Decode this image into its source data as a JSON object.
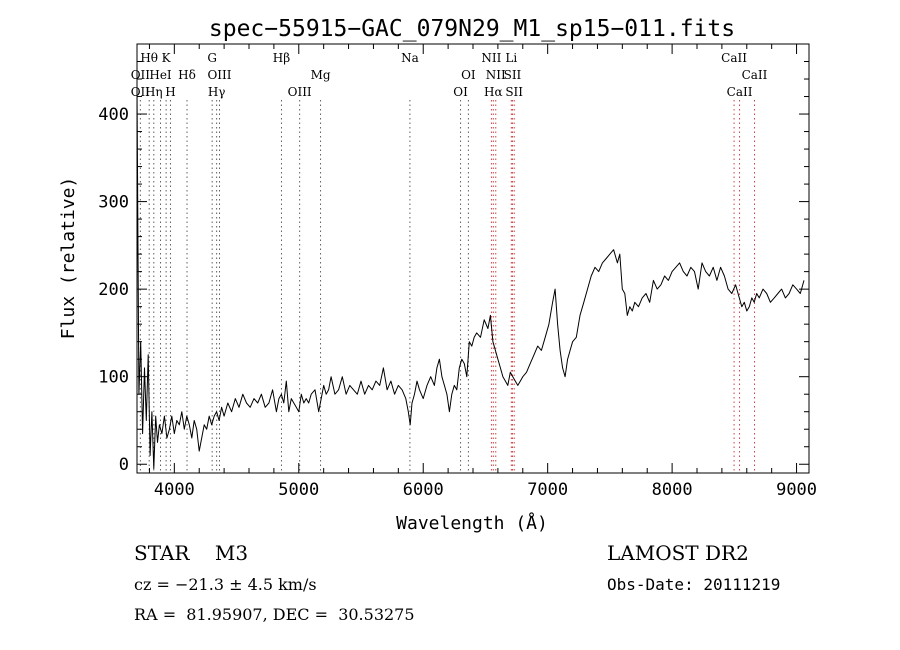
{
  "chart_data": {
    "type": "line",
    "title": "spec−55915−GAC_079N29_M1_sp15−011.fits",
    "xlabel": "Wavelength (Å)",
    "ylabel": "Flux (relative)",
    "xlim": [
      3700,
      9100
    ],
    "ylim": [
      -10,
      480
    ],
    "xticks": [
      4000,
      5000,
      6000,
      7000,
      8000,
      9000
    ],
    "yticks": [
      0,
      100,
      200,
      300,
      400
    ],
    "grid": false,
    "series": [
      {
        "x": [
          3700,
          3715,
          3730,
          3745,
          3760,
          3775,
          3790,
          3805,
          3820,
          3835,
          3850,
          3865,
          3880,
          3900,
          3920,
          3940,
          3960,
          3980,
          4000,
          4020,
          4040,
          4060,
          4080,
          4100,
          4120,
          4140,
          4160,
          4180,
          4200,
          4220,
          4240,
          4260,
          4280,
          4300,
          4320,
          4340,
          4360,
          4380,
          4400,
          4430,
          4460,
          4490,
          4520,
          4550,
          4580,
          4610,
          4640,
          4670,
          4700,
          4730,
          4760,
          4790,
          4820,
          4840,
          4860,
          4880,
          4900,
          4920,
          4940,
          4960,
          4980,
          5000,
          5020,
          5040,
          5060,
          5080,
          5100,
          5130,
          5160,
          5180,
          5200,
          5220,
          5240,
          5260,
          5290,
          5320,
          5350,
          5380,
          5410,
          5440,
          5470,
          5500,
          5530,
          5560,
          5590,
          5620,
          5650,
          5680,
          5710,
          5740,
          5770,
          5800,
          5830,
          5860,
          5880,
          5895,
          5910,
          5930,
          5950,
          5970,
          6000,
          6030,
          6060,
          6090,
          6110,
          6130,
          6150,
          6170,
          6190,
          6210,
          6230,
          6250,
          6270,
          6290,
          6310,
          6330,
          6350,
          6370,
          6390,
          6410,
          6430,
          6460,
          6490,
          6520,
          6540,
          6560,
          6580,
          6600,
          6620,
          6640,
          6660,
          6680,
          6700,
          6720,
          6740,
          6760,
          6780,
          6800,
          6830,
          6860,
          6890,
          6920,
          6950,
          6980,
          7010,
          7040,
          7060,
          7080,
          7100,
          7120,
          7140,
          7160,
          7180,
          7200,
          7230,
          7260,
          7290,
          7320,
          7350,
          7380,
          7410,
          7440,
          7470,
          7500,
          7530,
          7560,
          7580,
          7600,
          7620,
          7640,
          7660,
          7680,
          7700,
          7730,
          7760,
          7790,
          7820,
          7850,
          7880,
          7910,
          7940,
          7970,
          8000,
          8030,
          8060,
          8090,
          8120,
          8150,
          8180,
          8210,
          8240,
          8270,
          8300,
          8330,
          8360,
          8390,
          8420,
          8450,
          8480,
          8510,
          8540,
          8560,
          8580,
          8600,
          8620,
          8640,
          8660,
          8680,
          8700,
          8730,
          8760,
          8790,
          8820,
          8850,
          8880,
          8910,
          8940,
          8970,
          9000,
          9030,
          9060
        ],
        "y": [
          430,
          80,
          140,
          35,
          110,
          50,
          125,
          10,
          60,
          -5,
          55,
          25,
          45,
          35,
          55,
          30,
          40,
          55,
          35,
          50,
          45,
          60,
          40,
          55,
          45,
          30,
          50,
          40,
          15,
          30,
          45,
          40,
          55,
          45,
          55,
          60,
          50,
          65,
          55,
          70,
          60,
          75,
          65,
          80,
          70,
          65,
          75,
          70,
          80,
          65,
          70,
          85,
          60,
          75,
          80,
          70,
          95,
          60,
          75,
          70,
          65,
          60,
          80,
          70,
          75,
          70,
          80,
          85,
          60,
          75,
          90,
          80,
          85,
          100,
          80,
          85,
          100,
          80,
          90,
          85,
          80,
          95,
          80,
          90,
          85,
          95,
          90,
          110,
          85,
          95,
          80,
          90,
          85,
          75,
          60,
          45,
          70,
          80,
          95,
          85,
          75,
          90,
          100,
          90,
          110,
          120,
          100,
          90,
          80,
          60,
          80,
          90,
          85,
          110,
          120,
          115,
          100,
          140,
          135,
          145,
          150,
          145,
          165,
          155,
          170,
          140,
          130,
          120,
          110,
          100,
          95,
          90,
          105,
          100,
          95,
          90,
          95,
          100,
          105,
          115,
          125,
          135,
          130,
          145,
          160,
          185,
          200,
          160,
          130,
          110,
          100,
          120,
          130,
          140,
          145,
          170,
          185,
          200,
          215,
          225,
          220,
          230,
          235,
          240,
          245,
          230,
          240,
          200,
          195,
          170,
          180,
          175,
          185,
          180,
          190,
          195,
          185,
          210,
          200,
          205,
          215,
          210,
          220,
          225,
          230,
          220,
          215,
          225,
          220,
          200,
          230,
          220,
          215,
          225,
          210,
          225,
          215,
          200,
          195,
          205,
          190,
          180,
          185,
          175,
          180,
          190,
          185,
          195,
          190,
          200,
          195,
          185,
          190,
          195,
          200,
          190,
          195,
          205,
          200,
          195,
          210
        ]
      }
    ],
    "spectral_lines": [
      {
        "label": "Hθ",
        "x": 3798,
        "row": 1
      },
      {
        "label": "K",
        "x": 3934,
        "row": 1
      },
      {
        "label": "G",
        "x": 4304,
        "row": 1
      },
      {
        "label": "Hβ",
        "x": 4861,
        "row": 1
      },
      {
        "label": "Na",
        "x": 5893,
        "row": 1
      },
      {
        "label": "NII",
        "x": 6548,
        "row": 1
      },
      {
        "label": "Li",
        "x": 6708,
        "row": 1
      },
      {
        "label": "CaII",
        "x": 8498,
        "row": 1
      },
      {
        "label": "OII",
        "x": 3727,
        "row": 2
      },
      {
        "label": "HeI",
        "x": 3889,
        "row": 2
      },
      {
        "label": "Hδ",
        "x": 4102,
        "row": 2
      },
      {
        "label": "OIII",
        "x": 4363,
        "row": 2
      },
      {
        "label": "Mg",
        "x": 5175,
        "row": 2
      },
      {
        "label": "OI",
        "x": 6363,
        "row": 2
      },
      {
        "label": "NII",
        "x": 6583,
        "row": 2
      },
      {
        "label": "SII",
        "x": 6717,
        "row": 2
      },
      {
        "label": "CaII",
        "x": 8662,
        "row": 2
      },
      {
        "label": "OII",
        "x": 3727,
        "row": 3
      },
      {
        "label": "Hη",
        "x": 3835,
        "row": 3
      },
      {
        "label": "H",
        "x": 3969,
        "row": 3
      },
      {
        "label": "Hγ",
        "x": 4340,
        "row": 3
      },
      {
        "label": "OIII",
        "x": 5007,
        "row": 3
      },
      {
        "label": "OI",
        "x": 6300,
        "row": 3
      },
      {
        "label": "Hα",
        "x": 6563,
        "row": 3
      },
      {
        "label": "SII",
        "x": 6731,
        "row": 3
      },
      {
        "label": "CaII",
        "x": 8542,
        "row": 3
      }
    ],
    "line_colors": {
      "emission": "#d04040",
      "absorption": "#606060"
    },
    "emission_lines": [
      6563,
      6548,
      6583,
      6717,
      6731,
      6708,
      8498,
      8542,
      8662
    ]
  },
  "info": {
    "class_label": "STAR    M3",
    "survey": "LAMOST DR2",
    "cz": "cz = −21.3 ± 4.5 km/s",
    "obs_date": "Obs-Date: 20111219",
    "radec": "RA =  81.95907, DEC =  30.53275"
  }
}
